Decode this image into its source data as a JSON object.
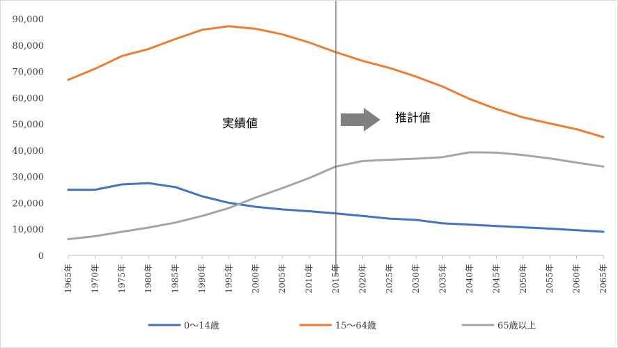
{
  "chart_data": {
    "type": "line",
    "title": "",
    "xlabel": "",
    "ylabel": "",
    "x": [
      "1965年",
      "1970年",
      "1975年",
      "1980年",
      "1985年",
      "1990年",
      "1995年",
      "2000年",
      "2005年",
      "2010年",
      "2015年",
      "2020年",
      "2025年",
      "2030年",
      "2035年",
      "2040年",
      "2045年",
      "2050年",
      "2055年",
      "2060年",
      "2065年"
    ],
    "ylim": [
      0,
      90000
    ],
    "yticks": [
      0,
      10000,
      20000,
      30000,
      40000,
      50000,
      60000,
      70000,
      80000,
      90000
    ],
    "ytick_labels": [
      "0",
      "10,000",
      "20,000",
      "30,000",
      "40,000",
      "50,000",
      "60,000",
      "70,000",
      "80,000",
      "90,000"
    ],
    "grid": false,
    "legend_position": "bottom",
    "series": [
      {
        "name": "0～14歳",
        "color": "#4472c4",
        "values": [
          25000,
          25000,
          27000,
          27500,
          26000,
          22500,
          20000,
          18500,
          17500,
          16800,
          16000,
          15000,
          14000,
          13500,
          12200,
          11700,
          11200,
          10700,
          10200,
          9600,
          9000
        ]
      },
      {
        "name": "15～64歳",
        "color": "#ed7d31",
        "values": [
          66800,
          71000,
          75800,
          78500,
          82300,
          85800,
          87200,
          86200,
          84100,
          81000,
          77300,
          74000,
          71300,
          68000,
          64200,
          59500,
          55700,
          52500,
          50200,
          48000,
          45000
        ]
      },
      {
        "name": "65歳以上",
        "color": "#a5a5a5",
        "values": [
          6200,
          7300,
          9000,
          10600,
          12500,
          15000,
          18000,
          22000,
          25600,
          29400,
          33800,
          35900,
          36400,
          36800,
          37400,
          39200,
          39100,
          38200,
          36900,
          35300,
          33800
        ]
      }
    ],
    "divider_at": "2015年",
    "annotations": {
      "actual": "実績値",
      "projected": "推計値"
    },
    "colors": {
      "axis": "#bfbfbf",
      "divider": "#595959",
      "arrow": "#808080"
    }
  }
}
